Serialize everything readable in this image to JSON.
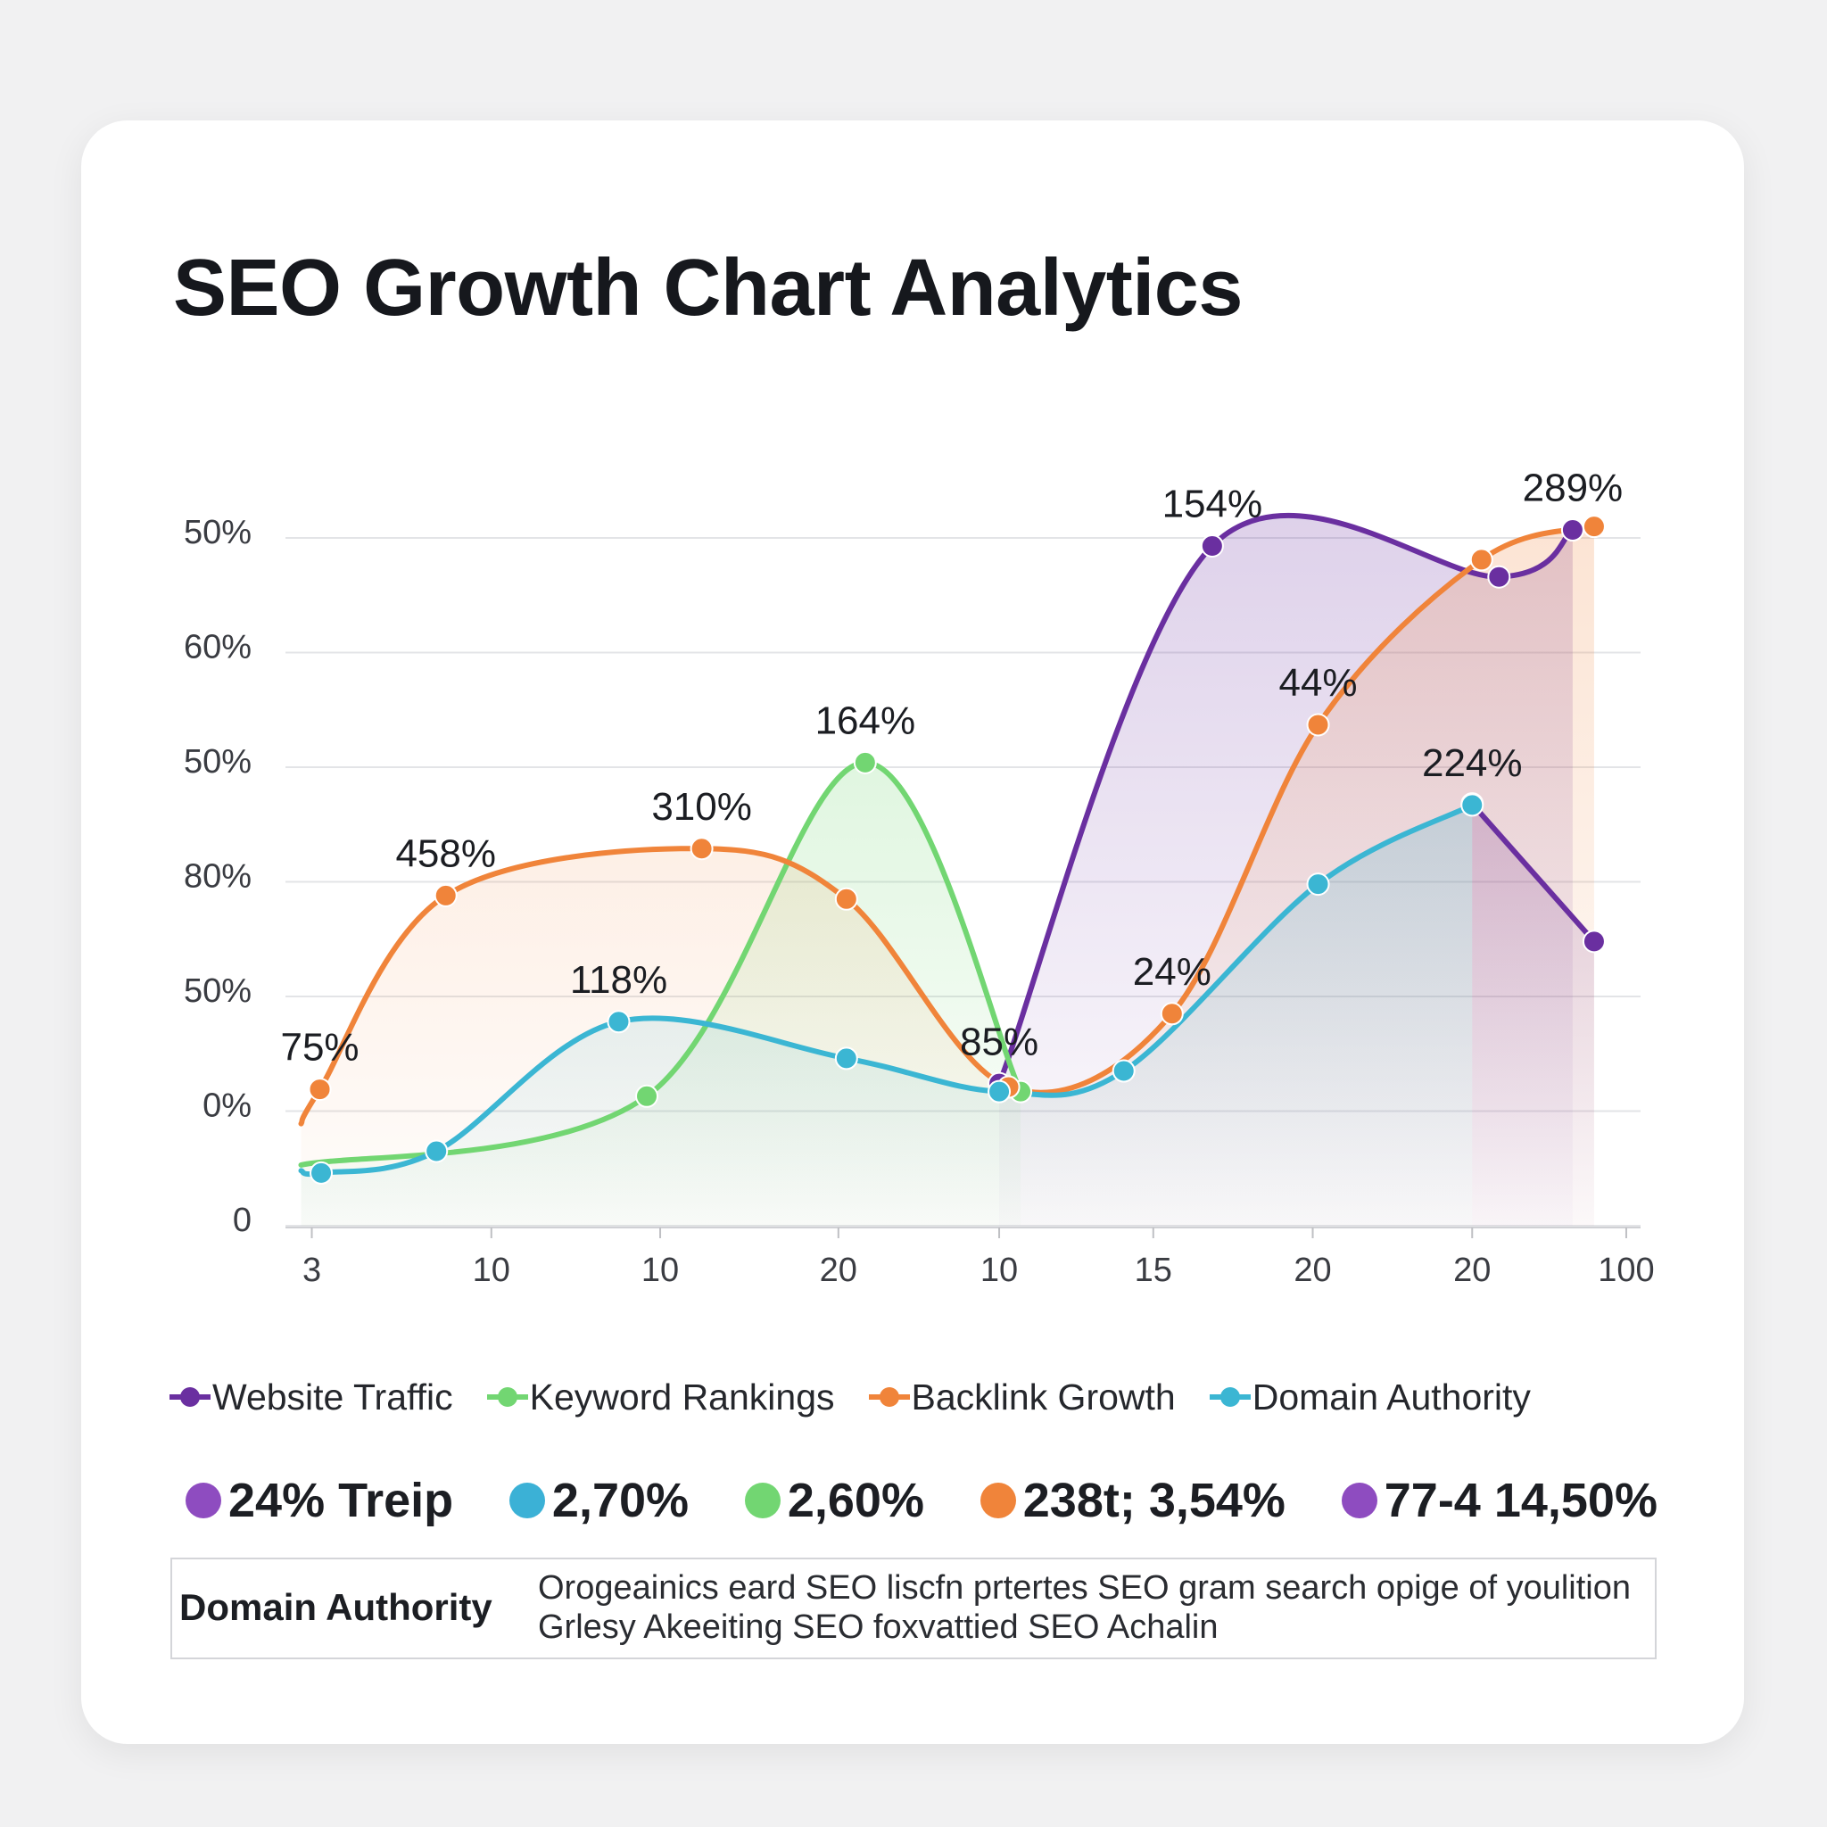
{
  "chart_data": {
    "type": "line",
    "title": "SEO Growth Chart Analytics",
    "xlim": [
      0,
      100
    ],
    "ylim": [
      0,
      6
    ],
    "xticks": [
      {
        "value": 1.1,
        "label": "3"
      },
      {
        "value": 14.5,
        "label": "10"
      },
      {
        "value": 27.1,
        "label": "10"
      },
      {
        "value": 40.4,
        "label": "20"
      },
      {
        "value": 52.4,
        "label": "10"
      },
      {
        "value": 63.9,
        "label": "15"
      },
      {
        "value": 75.8,
        "label": "20"
      },
      {
        "value": 87.7,
        "label": "20"
      },
      {
        "value": 99.2,
        "label": "100"
      }
    ],
    "yticks": [
      0,
      {
        "value": 1,
        "label": "0%"
      },
      {
        "value": 2,
        "label": "50%"
      },
      {
        "value": 3,
        "label": "80%"
      },
      {
        "value": 4,
        "label": "50%"
      },
      {
        "value": 5,
        "label": "60%"
      },
      {
        "value": 6,
        "label": "50%"
      }
    ],
    "grid": true,
    "series": [
      {
        "name": "Website Traffic",
        "color": "#6a2fa0",
        "x": [
          52.4,
          68.3,
          89.7,
          95.2,
          null,
          87.7,
          96.8
        ],
        "values": [
          1.24,
          5.93,
          5.66,
          6.07,
          null,
          3.68,
          2.48
        ]
      },
      {
        "name": "Keyword Rankings",
        "color": "#72d672",
        "x": [
          0.3,
          26.1,
          42.4,
          54.0
        ],
        "values": [
          0.53,
          1.13,
          4.04,
          1.17
        ]
      },
      {
        "name": "Backlink Growth",
        "color": "#f0843a",
        "x": [
          0.3,
          1.7,
          11.1,
          30.2,
          41.0,
          53.1,
          65.3,
          76.2,
          88.4,
          96.8
        ],
        "values": [
          0.89,
          1.19,
          2.88,
          3.29,
          2.85,
          1.21,
          1.85,
          4.37,
          5.81,
          6.1
        ]
      },
      {
        "name": "Domain Authority",
        "color": "#3bb6d3",
        "x": [
          0.3,
          1.8,
          10.4,
          24.0,
          41.0,
          52.4,
          61.7,
          76.2,
          87.7
        ],
        "values": [
          0.48,
          0.46,
          0.65,
          1.78,
          1.46,
          1.17,
          1.35,
          2.98,
          3.67
        ]
      }
    ],
    "annotations": [
      {
        "text": "75%",
        "x": 1.7,
        "y": 1.19
      },
      {
        "text": "458%",
        "x": 11.1,
        "y": 2.88
      },
      {
        "text": "310%",
        "x": 30.2,
        "y": 3.29
      },
      {
        "text": "118%",
        "x": 24.0,
        "y": 1.78
      },
      {
        "text": "164%",
        "x": 42.4,
        "y": 4.04
      },
      {
        "text": "85%",
        "x": 52.4,
        "y": 1.24
      },
      {
        "text": "24%",
        "x": 65.3,
        "y": 1.85
      },
      {
        "text": "154%",
        "x": 68.3,
        "y": 5.93
      },
      {
        "text": "44%",
        "x": 76.2,
        "y": 4.37
      },
      {
        "text": "224%",
        "x": 87.7,
        "y": 3.67
      },
      {
        "text": "289%",
        "x": 95.2,
        "y": 6.07
      }
    ]
  },
  "stats": [
    {
      "text": "24% Treip",
      "color": "#8e4cc0"
    },
    {
      "text": "2,70%",
      "color": "#3bb1d6"
    },
    {
      "text": "2,60%",
      "color": "#72d672"
    },
    {
      "text": "238t; 3,54%",
      "color": "#f0843a"
    },
    {
      "text": "77-4 14,50%",
      "color": "#8e4cc0"
    }
  ],
  "info": {
    "label": "Domain Authority",
    "text": "Orogeainics eard SEO liscfn prtertes SEO gram search opige of youlition Grlesy Akeeiting SEO foxvattied SEO Achalin"
  }
}
